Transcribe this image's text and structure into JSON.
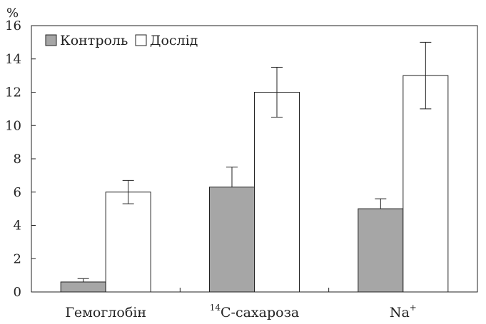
{
  "chart_data": {
    "type": "bar",
    "ylabel": "%",
    "ylim": [
      0,
      16
    ],
    "yticks": [
      0,
      2,
      4,
      6,
      8,
      10,
      12,
      14,
      16
    ],
    "categories": [
      {
        "label": "Гемоглобін"
      },
      {
        "label": "C-сахароза",
        "prefix_sup": "14"
      },
      {
        "label": "Na",
        "suffix_sup": "+"
      }
    ],
    "series": [
      {
        "name": "Контроль",
        "color": "#a6a6a6",
        "values": [
          0.6,
          6.3,
          5.0
        ],
        "errors": [
          0.2,
          1.2,
          0.6
        ]
      },
      {
        "name": "Дослід",
        "color": "#ffffff",
        "values": [
          6.0,
          12.0,
          13.0
        ],
        "errors": [
          0.7,
          1.5,
          2.0
        ]
      }
    ],
    "legend_position": "top-left",
    "grid": false
  }
}
